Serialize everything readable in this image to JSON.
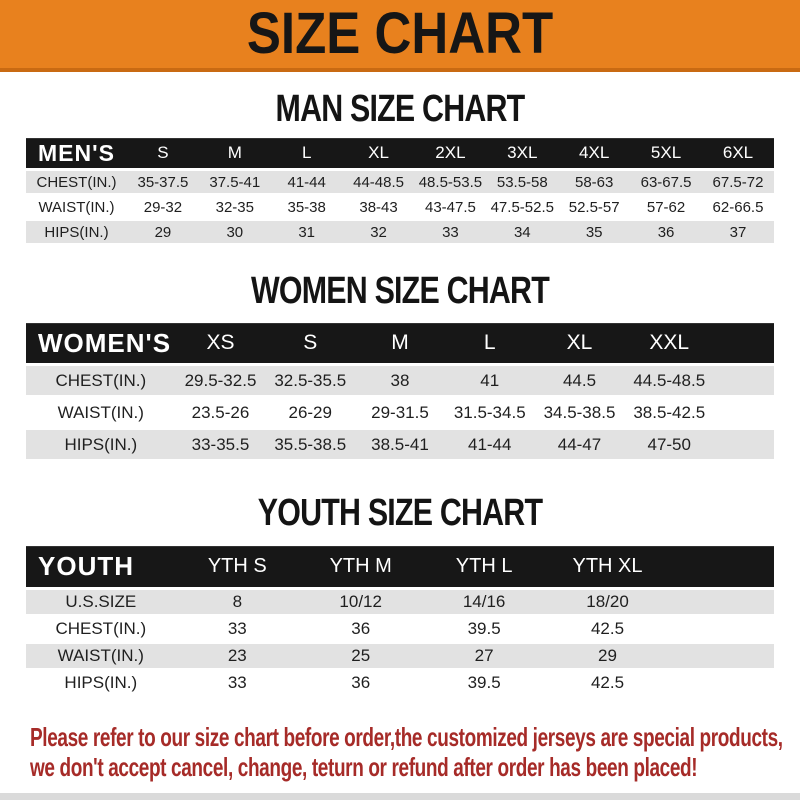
{
  "banner": {
    "title": "SIZE CHART"
  },
  "sections": [
    {
      "heading": "MAN SIZE CHART",
      "table": {
        "header_label": "MEN'S",
        "columns": [
          "S",
          "M",
          "L",
          "XL",
          "2XL",
          "3XL",
          "4XL",
          "5XL",
          "6XL"
        ],
        "rows": [
          {
            "label": "CHEST(IN.)",
            "values": [
              "35-37.5",
              "37.5-41",
              "41-44",
              "44-48.5",
              "48.5-53.5",
              "53.5-58",
              "58-63",
              "63-67.5",
              "67.5-72"
            ]
          },
          {
            "label": "WAIST(IN.)",
            "values": [
              "29-32",
              "32-35",
              "35-38",
              "38-43",
              "43-47.5",
              "47.5-52.5",
              "52.5-57",
              "57-62",
              "62-66.5"
            ]
          },
          {
            "label": "HIPS(IN.)",
            "values": [
              "29",
              "30",
              "31",
              "32",
              "33",
              "34",
              "35",
              "36",
              "37"
            ]
          }
        ]
      }
    },
    {
      "heading": "WOMEN SIZE CHART",
      "table": {
        "header_label": "WOMEN'S",
        "columns": [
          "XS",
          "S",
          "M",
          "L",
          "XL",
          "XXL"
        ],
        "rows": [
          {
            "label": "CHEST(IN.)",
            "values": [
              "29.5-32.5",
              "32.5-35.5",
              "38",
              "41",
              "44.5",
              "44.5-48.5"
            ]
          },
          {
            "label": "WAIST(IN.)",
            "values": [
              "23.5-26",
              "26-29",
              "29-31.5",
              "31.5-34.5",
              "34.5-38.5",
              "38.5-42.5"
            ]
          },
          {
            "label": "HIPS(IN.)",
            "values": [
              "33-35.5",
              "35.5-38.5",
              "38.5-41",
              "41-44",
              "44-47",
              "47-50"
            ]
          }
        ]
      }
    },
    {
      "heading": "YOUTH SIZE CHART",
      "table": {
        "header_label": "YOUTH",
        "columns": [
          "YTH S",
          "YTH M",
          "YTH L",
          "YTH XL"
        ],
        "rows": [
          {
            "label": "U.S.SIZE",
            "values": [
              "8",
              "10/12",
              "14/16",
              "18/20"
            ]
          },
          {
            "label": "CHEST(IN.)",
            "values": [
              "33",
              "36",
              "39.5",
              "42.5"
            ]
          },
          {
            "label": "WAIST(IN.)",
            "values": [
              "23",
              "25",
              "27",
              "29"
            ]
          },
          {
            "label": "HIPS(IN.)",
            "values": [
              "33",
              "36",
              "39.5",
              "42.5"
            ]
          }
        ]
      }
    }
  ],
  "footer_note": {
    "lines": [
      "Please refer to our size chart before order,the customized jerseys are special products,",
      "we don't accept cancel, change, teturn or refund after order has been placed!"
    ]
  },
  "colors": {
    "banner_orange": "#E8811E",
    "banner_orange_edge": "#C96A12",
    "header_bar_black": "#171717",
    "row_gray": "#E2E2E2",
    "note_red": "#A62B28"
  }
}
